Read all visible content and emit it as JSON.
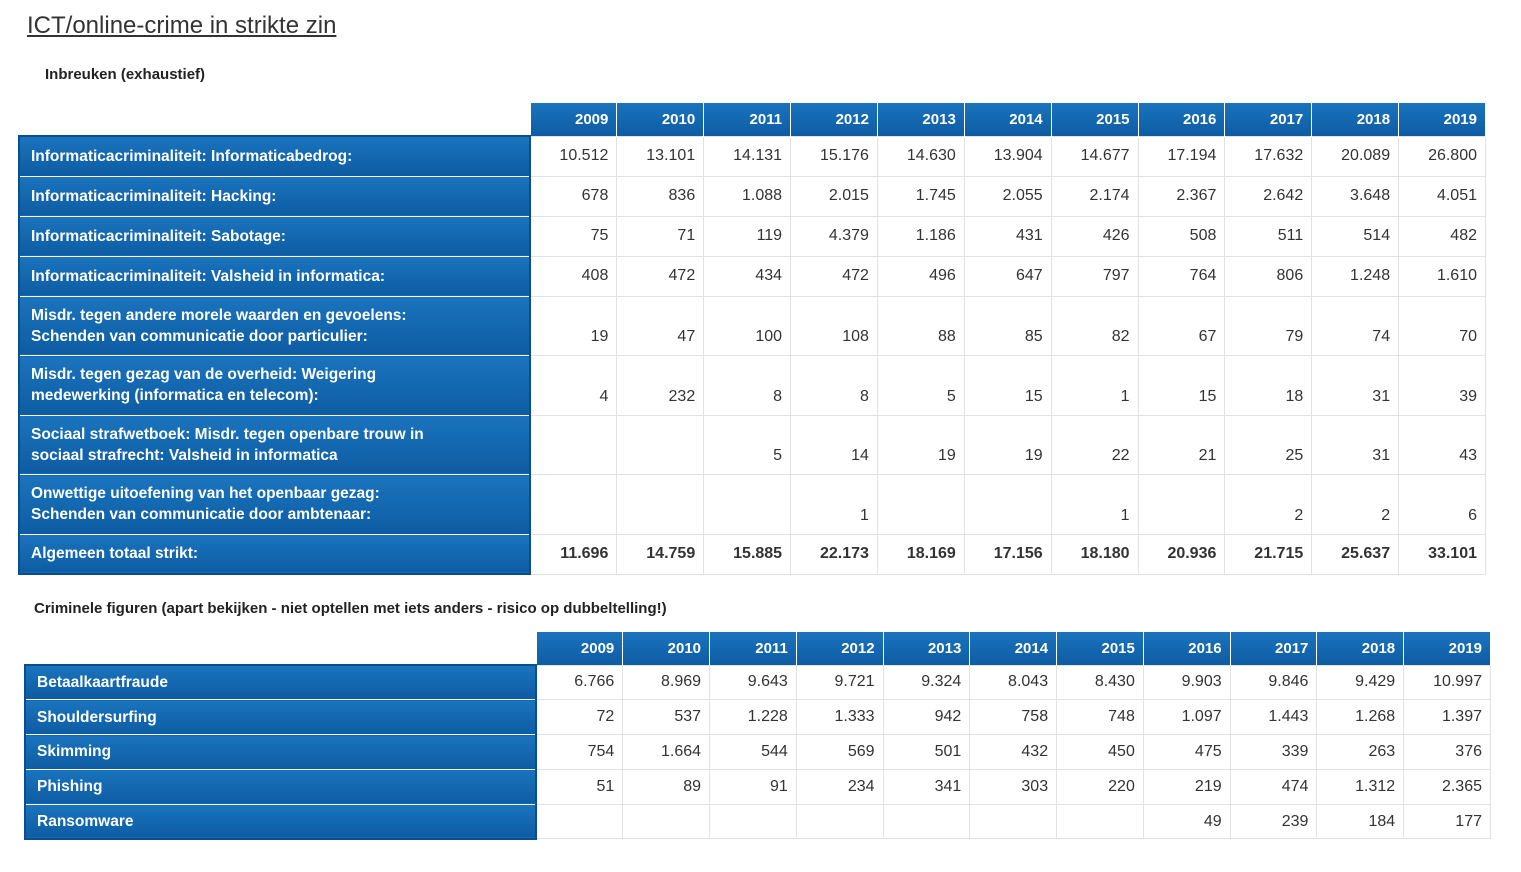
{
  "page_title": "ICT/online-crime in strikte zin",
  "section1": {
    "title": "Inbreuken (exhaustief)",
    "years": [
      "2009",
      "2010",
      "2011",
      "2012",
      "2013",
      "2014",
      "2015",
      "2016",
      "2017",
      "2018",
      "2019"
    ],
    "rows": [
      {
        "label": "Informaticacriminaliteit: Informaticabedrog:",
        "values": [
          "10.512",
          "13.101",
          "14.131",
          "15.176",
          "14.630",
          "13.904",
          "14.677",
          "17.194",
          "17.632",
          "20.089",
          "26.800"
        ]
      },
      {
        "label": "Informaticacriminaliteit: Hacking:",
        "values": [
          "678",
          "836",
          "1.088",
          "2.015",
          "1.745",
          "2.055",
          "2.174",
          "2.367",
          "2.642",
          "3.648",
          "4.051"
        ]
      },
      {
        "label": "Informaticacriminaliteit: Sabotage:",
        "values": [
          "75",
          "71",
          "119",
          "4.379",
          "1.186",
          "431",
          "426",
          "508",
          "511",
          "514",
          "482"
        ]
      },
      {
        "label": "Informaticacriminaliteit: Valsheid in informatica:",
        "values": [
          "408",
          "472",
          "434",
          "472",
          "496",
          "647",
          "797",
          "764",
          "806",
          "1.248",
          "1.610"
        ]
      },
      {
        "label_line1": "Misdr. tegen andere morele waarden en gevoelens:",
        "label_line2": "Schenden van communicatie door particulier:",
        "values": [
          "19",
          "47",
          "100",
          "108",
          "88",
          "85",
          "82",
          "67",
          "79",
          "74",
          "70"
        ]
      },
      {
        "label_line1": "Misdr. tegen gezag van de overheid: Weigering",
        "label_line2": "medewerking (informatica en telecom):",
        "values": [
          "4",
          "232",
          "8",
          "8",
          "5",
          "15",
          "1",
          "15",
          "18",
          "31",
          "39"
        ]
      },
      {
        "label_line1": "Sociaal strafwetboek: Misdr. tegen openbare trouw in",
        "label_line2": "sociaal strafrecht: Valsheid in informatica",
        "values": [
          "",
          "",
          "5",
          "14",
          "19",
          "19",
          "22",
          "21",
          "25",
          "31",
          "43"
        ]
      },
      {
        "label_line1": "Onwettige uitoefening van het openbaar gezag:",
        "label_line2": "Schenden van communicatie door ambtenaar:",
        "values": [
          "",
          "",
          "",
          "1",
          "",
          "",
          "1",
          "",
          "2",
          "2",
          "6"
        ]
      }
    ],
    "total": {
      "label": "Algemeen totaal strikt:",
      "values": [
        "11.696",
        "14.759",
        "15.885",
        "22.173",
        "18.169",
        "17.156",
        "18.180",
        "20.936",
        "21.715",
        "25.637",
        "33.101"
      ]
    }
  },
  "section2": {
    "title": "Criminele figuren (apart bekijken - niet optellen met iets anders - risico op dubbeltelling!)",
    "years": [
      "2009",
      "2010",
      "2011",
      "2012",
      "2013",
      "2014",
      "2015",
      "2016",
      "2017",
      "2018",
      "2019"
    ],
    "rows": [
      {
        "label": "Betaalkaartfraude",
        "values": [
          "6.766",
          "8.969",
          "9.643",
          "9.721",
          "9.324",
          "8.043",
          "8.430",
          "9.903",
          "9.846",
          "9.429",
          "10.997"
        ]
      },
      {
        "label": "Shouldersurfing",
        "values": [
          "72",
          "537",
          "1.228",
          "1.333",
          "942",
          "758",
          "748",
          "1.097",
          "1.443",
          "1.268",
          "1.397"
        ]
      },
      {
        "label": "Skimming",
        "values": [
          "754",
          "1.664",
          "544",
          "569",
          "501",
          "432",
          "450",
          "475",
          "339",
          "263",
          "376"
        ]
      },
      {
        "label": "Phishing",
        "values": [
          "51",
          "89",
          "91",
          "234",
          "341",
          "303",
          "220",
          "219",
          "474",
          "1.312",
          "2.365"
        ]
      },
      {
        "label": "Ransomware",
        "values": [
          "",
          "",
          "",
          "",
          "",
          "",
          "",
          "49",
          "239",
          "184",
          "177"
        ]
      }
    ]
  }
}
